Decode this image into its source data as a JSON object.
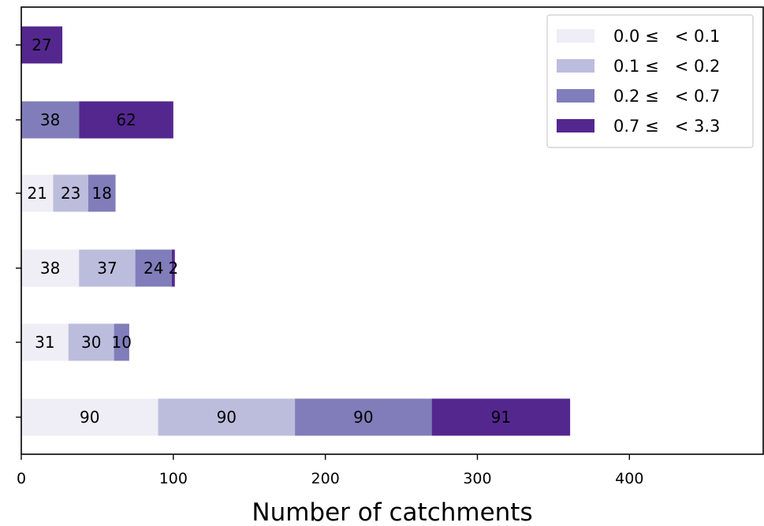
{
  "chart_data": {
    "type": "bar",
    "orientation": "horizontal",
    "stacked": true,
    "title": "",
    "xlabel": "Number of catchments",
    "ylabel": "",
    "xlim": [
      0,
      488
    ],
    "xticks": [
      0,
      100,
      200,
      300,
      400
    ],
    "categories": [
      "",
      "",
      "",
      "",
      "",
      ""
    ],
    "series": [
      {
        "name": "0.0 ≤   < 0.1",
        "color": "#efedf5",
        "values": [
          0,
          0,
          21,
          38,
          31,
          90
        ]
      },
      {
        "name": "0.1 ≤   < 0.2",
        "color": "#bcbddc",
        "values": [
          0,
          0,
          23,
          37,
          30,
          90
        ]
      },
      {
        "name": "0.2 ≤   < 0.7",
        "color": "#807dba",
        "values": [
          0,
          38,
          18,
          24,
          10,
          90
        ]
      },
      {
        "name": "0.7 ≤   < 3.3",
        "color": "#54278f",
        "values": [
          27,
          62,
          0,
          2,
          0,
          91
        ]
      }
    ],
    "data_labels": [
      [
        "",
        "",
        "",
        "27"
      ],
      [
        "",
        "",
        "38",
        "62"
      ],
      [
        "21",
        "23",
        "18",
        ""
      ],
      [
        "38",
        "37",
        "24",
        "2"
      ],
      [
        "31",
        "30",
        "10",
        ""
      ],
      [
        "90",
        "90",
        "90",
        "91"
      ]
    ],
    "grid": false,
    "legend_position": "top-right"
  }
}
